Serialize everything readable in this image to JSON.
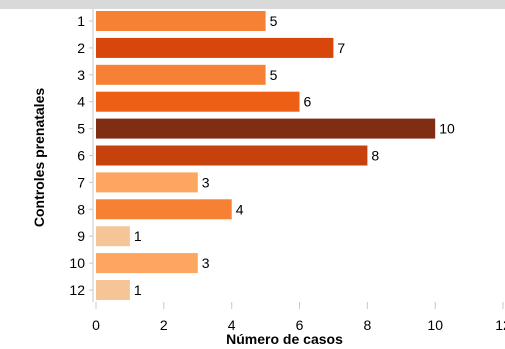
{
  "chart_data": {
    "type": "bar",
    "orientation": "horizontal",
    "categories": [
      "1",
      "2",
      "3",
      "4",
      "5",
      "6",
      "7",
      "8",
      "9",
      "10",
      "12"
    ],
    "values": [
      5,
      7,
      5,
      6,
      10,
      8,
      3,
      4,
      1,
      3,
      1
    ],
    "colors": [
      "#f68034",
      "#d9460b",
      "#f68034",
      "#ec5f14",
      "#7f2e14",
      "#c7410c",
      "#fda660",
      "#f68034",
      "#f5c598",
      "#fda660",
      "#f5c598"
    ],
    "xlabel": "Número de casos",
    "ylabel": "Controles prenatales",
    "xlim": [
      0,
      12
    ],
    "xticks": [
      0,
      2,
      4,
      6,
      8,
      10,
      12
    ],
    "grid": false,
    "legend": "none"
  }
}
